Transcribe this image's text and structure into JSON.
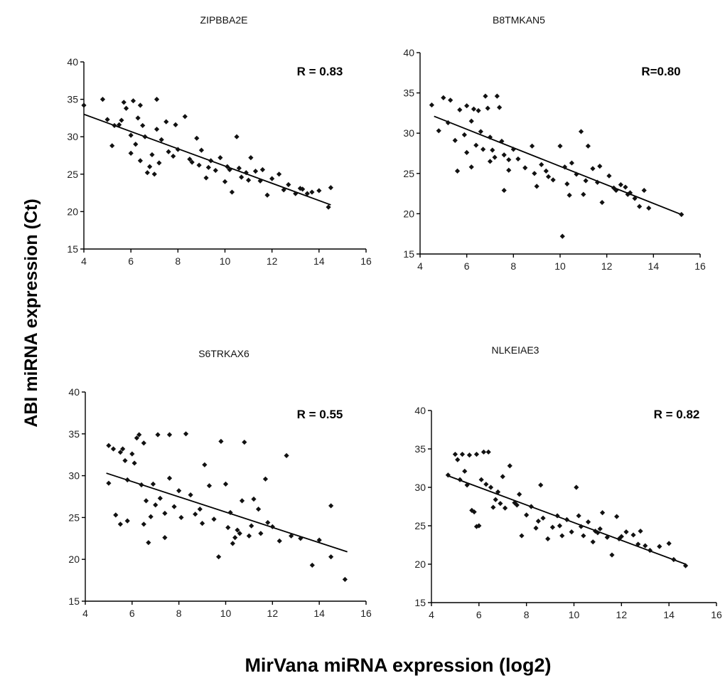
{
  "figure": {
    "ylabel": "ABI miRNA expression (Ct)",
    "xlabel": "MirVana miRNA expression (log2)"
  },
  "chart_data": [
    {
      "type": "scatter",
      "title": "ZIPBBA2E",
      "annotation": "R = 0.83",
      "xlim": [
        4,
        16
      ],
      "ylim": [
        15,
        40
      ],
      "xticks": [
        4,
        6,
        8,
        10,
        12,
        14,
        16
      ],
      "yticks": [
        15,
        20,
        25,
        30,
        35,
        40
      ],
      "trendline": {
        "x": [
          4,
          14.5
        ],
        "y": [
          33.0,
          20.9
        ]
      },
      "points": [
        [
          4.0,
          34.2
        ],
        [
          4.8,
          35.0
        ],
        [
          5.0,
          32.3
        ],
        [
          5.3,
          31.5
        ],
        [
          5.2,
          28.8
        ],
        [
          5.5,
          31.6
        ],
        [
          5.7,
          34.6
        ],
        [
          5.8,
          33.8
        ],
        [
          5.6,
          32.2
        ],
        [
          6.0,
          30.2
        ],
        [
          6.1,
          34.8
        ],
        [
          6.4,
          34.2
        ],
        [
          6.3,
          32.5
        ],
        [
          6.5,
          31.5
        ],
        [
          6.6,
          30.0
        ],
        [
          6.2,
          29.0
        ],
        [
          6.0,
          27.8
        ],
        [
          6.4,
          26.8
        ],
        [
          6.7,
          25.2
        ],
        [
          7.0,
          25.0
        ],
        [
          7.1,
          35.0
        ],
        [
          7.1,
          31.0
        ],
        [
          7.3,
          29.6
        ],
        [
          6.9,
          27.6
        ],
        [
          6.8,
          26.0
        ],
        [
          7.5,
          32.0
        ],
        [
          7.6,
          28.0
        ],
        [
          7.8,
          27.4
        ],
        [
          8.0,
          28.3
        ],
        [
          7.9,
          31.6
        ],
        [
          8.3,
          32.7
        ],
        [
          8.5,
          27.0
        ],
        [
          8.8,
          29.8
        ],
        [
          9.0,
          28.2
        ],
        [
          8.9,
          26.2
        ],
        [
          9.2,
          24.5
        ],
        [
          9.4,
          26.8
        ],
        [
          9.6,
          25.5
        ],
        [
          9.8,
          27.2
        ],
        [
          10.0,
          24.0
        ],
        [
          10.2,
          25.6
        ],
        [
          10.3,
          22.6
        ],
        [
          10.5,
          30.0
        ],
        [
          10.6,
          25.8
        ],
        [
          10.9,
          25.2
        ],
        [
          11.1,
          27.2
        ],
        [
          11.3,
          25.4
        ],
        [
          11.6,
          25.6
        ],
        [
          11.8,
          22.2
        ],
        [
          12.3,
          25.0
        ],
        [
          12.7,
          23.6
        ],
        [
          13.0,
          22.4
        ],
        [
          13.3,
          23.0
        ],
        [
          13.7,
          22.6
        ],
        [
          14.0,
          22.8
        ],
        [
          14.4,
          20.6
        ],
        [
          14.5,
          23.2
        ],
        [
          7.2,
          26.5
        ],
        [
          8.6,
          26.6
        ],
        [
          9.3,
          25.9
        ],
        [
          10.1,
          26.0
        ],
        [
          10.7,
          24.6
        ],
        [
          11.0,
          24.2
        ],
        [
          11.5,
          24.1
        ],
        [
          12.0,
          24.4
        ],
        [
          12.5,
          22.9
        ],
        [
          13.2,
          23.1
        ],
        [
          13.5,
          22.4
        ]
      ]
    },
    {
      "type": "scatter",
      "title": "B8TMKAN5",
      "annotation": "R=0.80",
      "xlim": [
        4,
        16
      ],
      "ylim": [
        15,
        40
      ],
      "xticks": [
        4,
        6,
        8,
        10,
        12,
        14,
        16
      ],
      "yticks": [
        15,
        20,
        25,
        30,
        35,
        40
      ],
      "trendline": {
        "x": [
          4.6,
          15.2
        ],
        "y": [
          32.1,
          19.9
        ]
      },
      "points": [
        [
          4.5,
          33.5
        ],
        [
          4.8,
          30.3
        ],
        [
          5.0,
          34.4
        ],
        [
          5.3,
          34.1
        ],
        [
          5.2,
          31.3
        ],
        [
          5.5,
          29.1
        ],
        [
          5.7,
          32.9
        ],
        [
          5.9,
          29.8
        ],
        [
          5.6,
          25.3
        ],
        [
          6.0,
          33.4
        ],
        [
          6.3,
          33.0
        ],
        [
          6.2,
          31.5
        ],
        [
          6.5,
          32.8
        ],
        [
          6.6,
          30.2
        ],
        [
          6.4,
          28.5
        ],
        [
          6.0,
          27.6
        ],
        [
          6.2,
          25.8
        ],
        [
          6.8,
          34.6
        ],
        [
          6.9,
          33.1
        ],
        [
          7.0,
          29.5
        ],
        [
          7.1,
          27.9
        ],
        [
          7.3,
          34.6
        ],
        [
          7.4,
          33.2
        ],
        [
          7.2,
          27.0
        ],
        [
          7.0,
          26.5
        ],
        [
          7.5,
          29.0
        ],
        [
          7.6,
          27.3
        ],
        [
          7.8,
          25.4
        ],
        [
          7.6,
          22.9
        ],
        [
          8.0,
          28.0
        ],
        [
          8.2,
          26.8
        ],
        [
          8.5,
          25.7
        ],
        [
          8.8,
          28.4
        ],
        [
          9.0,
          23.4
        ],
        [
          9.2,
          26.1
        ],
        [
          9.4,
          25.3
        ],
        [
          9.7,
          24.2
        ],
        [
          10.0,
          28.4
        ],
        [
          10.1,
          17.2
        ],
        [
          10.2,
          25.8
        ],
        [
          10.4,
          22.3
        ],
        [
          10.5,
          26.3
        ],
        [
          10.7,
          24.9
        ],
        [
          10.9,
          30.2
        ],
        [
          11.0,
          22.4
        ],
        [
          11.2,
          28.4
        ],
        [
          11.4,
          25.6
        ],
        [
          11.7,
          25.9
        ],
        [
          11.8,
          21.4
        ],
        [
          12.1,
          24.7
        ],
        [
          12.4,
          22.9
        ],
        [
          12.6,
          23.6
        ],
        [
          12.9,
          22.4
        ],
        [
          13.2,
          21.9
        ],
        [
          13.4,
          20.9
        ],
        [
          13.6,
          22.9
        ],
        [
          13.8,
          20.7
        ],
        [
          15.2,
          19.9
        ],
        [
          6.7,
          28.0
        ],
        [
          7.8,
          26.7
        ],
        [
          8.9,
          25.0
        ],
        [
          9.5,
          24.6
        ],
        [
          10.3,
          23.7
        ],
        [
          11.1,
          24.1
        ],
        [
          11.6,
          23.9
        ],
        [
          12.3,
          23.2
        ],
        [
          12.8,
          23.3
        ],
        [
          13.0,
          22.6
        ]
      ]
    },
    {
      "type": "scatter",
      "title": "S6TRKAX6",
      "annotation": "R = 0.55",
      "xlim": [
        4,
        16
      ],
      "ylim": [
        15,
        40
      ],
      "xticks": [
        4,
        6,
        8,
        10,
        12,
        14,
        16
      ],
      "yticks": [
        15,
        20,
        25,
        30,
        35,
        40
      ],
      "trendline": {
        "x": [
          4.9,
          15.2
        ],
        "y": [
          30.3,
          20.9
        ]
      },
      "points": [
        [
          5.0,
          33.6
        ],
        [
          5.2,
          33.2
        ],
        [
          5.0,
          29.1
        ],
        [
          5.3,
          25.3
        ],
        [
          5.5,
          24.2
        ],
        [
          5.5,
          32.8
        ],
        [
          5.6,
          33.2
        ],
        [
          5.7,
          31.8
        ],
        [
          5.8,
          29.5
        ],
        [
          5.8,
          24.6
        ],
        [
          6.0,
          32.6
        ],
        [
          6.1,
          31.5
        ],
        [
          6.2,
          34.5
        ],
        [
          6.3,
          34.9
        ],
        [
          6.5,
          33.9
        ],
        [
          6.4,
          28.9
        ],
        [
          6.6,
          27.0
        ],
        [
          6.5,
          24.2
        ],
        [
          6.7,
          22.0
        ],
        [
          6.9,
          29.0
        ],
        [
          7.1,
          34.9
        ],
        [
          7.2,
          27.3
        ],
        [
          7.4,
          25.5
        ],
        [
          7.6,
          34.9
        ],
        [
          7.6,
          29.7
        ],
        [
          7.8,
          26.3
        ],
        [
          8.1,
          25.0
        ],
        [
          8.3,
          35.0
        ],
        [
          8.5,
          27.7
        ],
        [
          8.7,
          25.4
        ],
        [
          8.9,
          26.0
        ],
        [
          9.1,
          31.3
        ],
        [
          9.3,
          28.8
        ],
        [
          9.5,
          24.8
        ],
        [
          9.7,
          20.3
        ],
        [
          9.8,
          34.1
        ],
        [
          10.0,
          29.0
        ],
        [
          10.2,
          25.6
        ],
        [
          10.3,
          21.9
        ],
        [
          10.5,
          23.5
        ],
        [
          10.7,
          27.0
        ],
        [
          10.8,
          34.0
        ],
        [
          11.0,
          22.8
        ],
        [
          11.2,
          27.2
        ],
        [
          11.4,
          26.0
        ],
        [
          11.7,
          29.6
        ],
        [
          12.0,
          23.9
        ],
        [
          12.3,
          22.2
        ],
        [
          12.6,
          32.4
        ],
        [
          12.8,
          22.8
        ],
        [
          13.2,
          22.5
        ],
        [
          13.7,
          19.3
        ],
        [
          14.0,
          22.3
        ],
        [
          14.5,
          26.4
        ],
        [
          14.5,
          20.3
        ],
        [
          15.1,
          17.6
        ],
        [
          7.0,
          26.5
        ],
        [
          8.0,
          28.2
        ],
        [
          9.0,
          24.3
        ],
        [
          10.1,
          23.8
        ],
        [
          10.6,
          23.1
        ],
        [
          11.1,
          24.0
        ],
        [
          11.8,
          24.4
        ],
        [
          6.8,
          25.1
        ],
        [
          7.4,
          22.6
        ],
        [
          10.4,
          22.6
        ],
        [
          11.5,
          23.1
        ]
      ]
    },
    {
      "type": "scatter",
      "title": "NLKEIAE3",
      "annotation": "R = 0.82",
      "xlim": [
        4,
        16
      ],
      "ylim": [
        15,
        40
      ],
      "xticks": [
        4,
        6,
        8,
        10,
        12,
        14,
        16
      ],
      "yticks": [
        15,
        20,
        25,
        30,
        35,
        40
      ],
      "trendline": {
        "x": [
          4.7,
          14.7
        ],
        "y": [
          31.5,
          20.0
        ]
      },
      "points": [
        [
          4.7,
          31.6
        ],
        [
          5.0,
          34.3
        ],
        [
          5.1,
          33.6
        ],
        [
          5.2,
          31.0
        ],
        [
          5.3,
          34.3
        ],
        [
          5.4,
          32.1
        ],
        [
          5.5,
          30.3
        ],
        [
          5.6,
          34.2
        ],
        [
          5.7,
          27.0
        ],
        [
          5.8,
          26.8
        ],
        [
          5.9,
          34.3
        ],
        [
          6.0,
          25.0
        ],
        [
          6.1,
          31.0
        ],
        [
          6.2,
          34.6
        ],
        [
          6.3,
          30.4
        ],
        [
          6.4,
          34.6
        ],
        [
          6.5,
          30.0
        ],
        [
          6.6,
          27.4
        ],
        [
          6.8,
          29.4
        ],
        [
          7.0,
          31.4
        ],
        [
          7.1,
          27.3
        ],
        [
          7.3,
          32.8
        ],
        [
          7.5,
          28.0
        ],
        [
          7.7,
          29.1
        ],
        [
          7.8,
          23.7
        ],
        [
          8.0,
          26.4
        ],
        [
          8.2,
          27.5
        ],
        [
          8.4,
          24.7
        ],
        [
          8.6,
          30.3
        ],
        [
          8.7,
          26.0
        ],
        [
          8.9,
          23.3
        ],
        [
          9.1,
          24.8
        ],
        [
          9.3,
          26.3
        ],
        [
          9.5,
          23.7
        ],
        [
          9.7,
          25.8
        ],
        [
          9.9,
          24.2
        ],
        [
          10.1,
          30.0
        ],
        [
          10.2,
          26.3
        ],
        [
          10.4,
          23.7
        ],
        [
          10.6,
          25.5
        ],
        [
          10.8,
          22.9
        ],
        [
          11.0,
          24.1
        ],
        [
          11.2,
          26.7
        ],
        [
          11.4,
          23.5
        ],
        [
          11.6,
          21.2
        ],
        [
          11.8,
          26.2
        ],
        [
          12.0,
          23.6
        ],
        [
          12.2,
          24.2
        ],
        [
          12.5,
          23.8
        ],
        [
          12.8,
          24.3
        ],
        [
          13.0,
          22.4
        ],
        [
          13.2,
          21.8
        ],
        [
          13.6,
          22.3
        ],
        [
          14.0,
          22.7
        ],
        [
          14.2,
          20.6
        ],
        [
          14.7,
          19.8
        ],
        [
          6.7,
          28.4
        ],
        [
          7.6,
          27.7
        ],
        [
          8.5,
          25.6
        ],
        [
          9.4,
          25.0
        ],
        [
          10.3,
          24.9
        ],
        [
          11.1,
          24.6
        ],
        [
          11.9,
          23.3
        ],
        [
          12.7,
          22.6
        ],
        [
          5.9,
          24.9
        ],
        [
          6.9,
          27.9
        ],
        [
          10.9,
          24.3
        ]
      ]
    }
  ]
}
